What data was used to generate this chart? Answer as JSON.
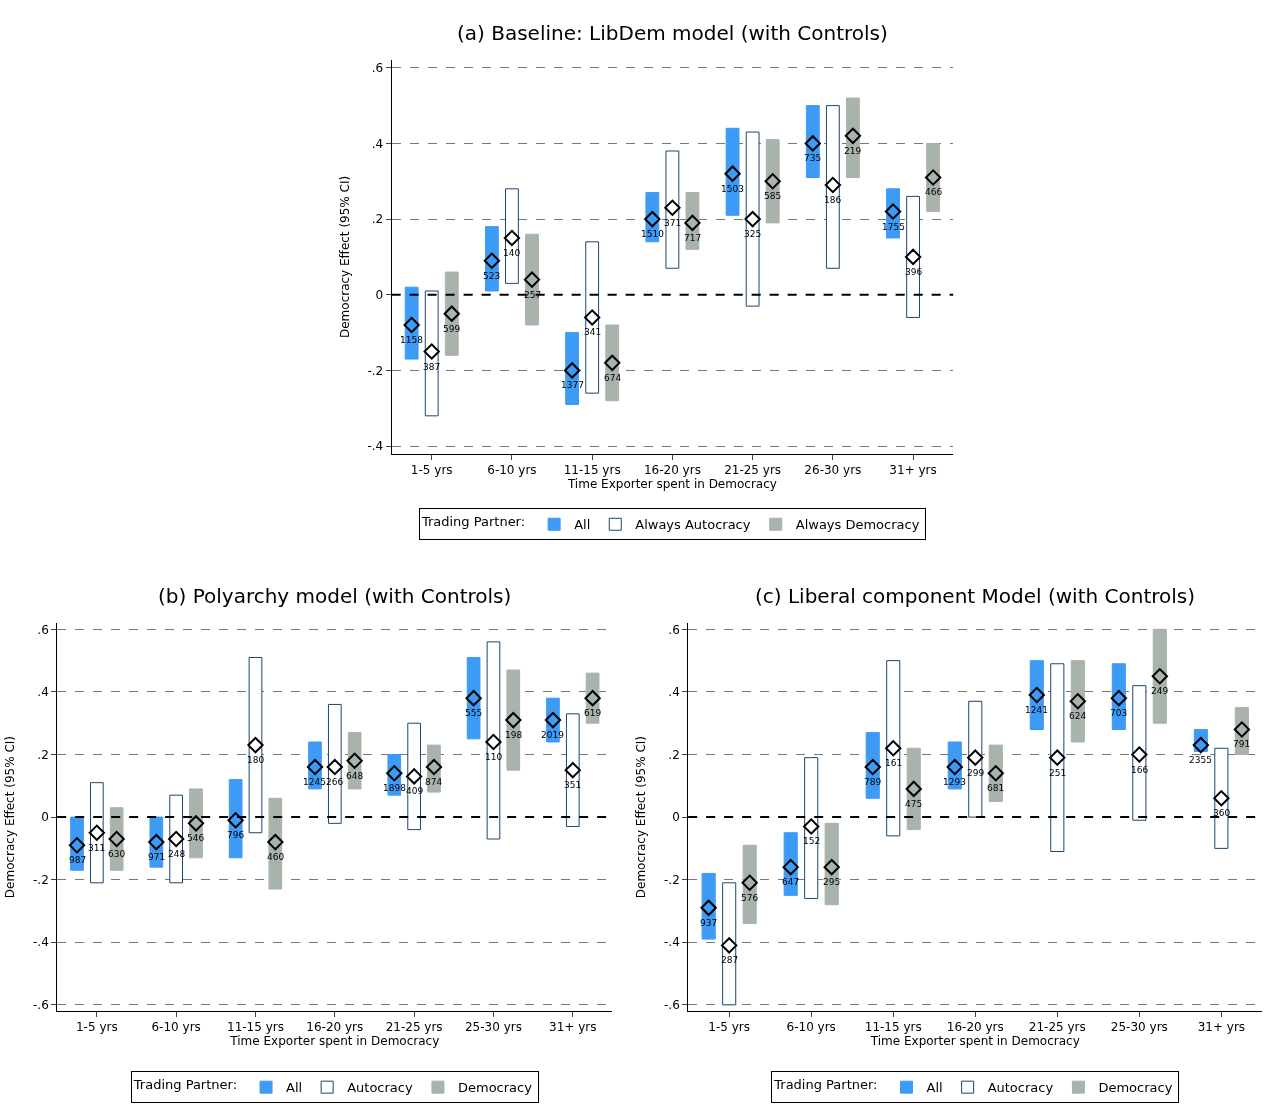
{
  "chart_data": [
    {
      "type": "bar",
      "title": "(a) Baseline: LibDem model (with Controls)",
      "xlabel": "Time Exporter spent in Democracy",
      "ylabel": "Democracy Effect (95% CI)",
      "legend_title": "Trading Partner:",
      "legend": "bottom",
      "grid": "y",
      "categories": [
        "1-5 yrs",
        "6-10 yrs",
        "11-15 yrs",
        "16-20 yrs",
        "21-25 yrs",
        "26-30 yrs",
        "31+ yrs"
      ],
      "ylim": [
        -0.42,
        0.62
      ],
      "yticks": [
        {
          "value": -0.4,
          "label": "-.4"
        },
        {
          "value": -0.2,
          "label": "-.2"
        },
        0,
        {
          "value": 0.2,
          "label": ".2"
        },
        {
          "value": 0.4,
          "label": ".4"
        },
        {
          "value": 0.6,
          "label": ".6"
        }
      ],
      "ref_lines": [
        {
          "axis": "y",
          "value": 0,
          "color": "#000000",
          "line_style": "dashed"
        }
      ],
      "series": [
        {
          "name": "All",
          "color": "#3d9bf5",
          "base": [
            -0.17,
            0.01,
            -0.29,
            0.14,
            0.21,
            0.31,
            0.15
          ],
          "values": [
            0.19,
            0.17,
            0.19,
            0.13,
            0.23,
            0.19,
            0.13
          ]
        },
        {
          "name": "Always Autocracy",
          "color": "#ffffff",
          "base": [
            -0.32,
            0.03,
            -0.26,
            0.07,
            -0.03,
            0.07,
            -0.06
          ],
          "values": [
            0.33,
            0.25,
            0.4,
            0.31,
            0.46,
            0.43,
            0.32
          ]
        },
        {
          "name": "Always Democracy",
          "color": "#a7b3ab",
          "base": [
            -0.16,
            -0.08,
            -0.28,
            0.12,
            0.19,
            0.31,
            0.22
          ],
          "values": [
            0.22,
            0.24,
            0.2,
            0.15,
            0.22,
            0.21,
            0.18
          ]
        },
        {
          "type": "scatter",
          "marker": "diamond",
          "color": "#3d9bf5",
          "values": [
            -0.08,
            0.09,
            -0.2,
            0.2,
            0.32,
            0.4,
            0.22
          ]
        },
        {
          "type": "scatter",
          "marker": "diamond",
          "color": "#ffffff",
          "values": [
            -0.15,
            0.15,
            -0.06,
            0.23,
            0.2,
            0.29,
            0.1
          ]
        },
        {
          "type": "scatter",
          "marker": "diamond",
          "color": "#a7b3ab",
          "values": [
            -0.05,
            0.04,
            -0.18,
            0.19,
            0.3,
            0.42,
            0.31
          ]
        }
      ],
      "annotations": [
        "1158",
        "523",
        "1377",
        "1510",
        "1503",
        "735",
        "1755",
        "387",
        "140",
        "341",
        "371",
        "325",
        "186",
        "396",
        "599",
        "257",
        "674",
        "717",
        "585",
        "219",
        "466"
      ]
    },
    {
      "type": "bar",
      "title": "(b) Polyarchy model (with Controls)",
      "xlabel": "Time Exporter spent in Democracy",
      "ylabel": "Democracy Effect (95% CI)",
      "legend_title": "Trading Partner:",
      "legend": "bottom",
      "grid": "y",
      "categories": [
        "1-5 yrs",
        "6-10 yrs",
        "11-15 yrs",
        "16-20 yrs",
        "21-25 yrs",
        "25-30 yrs",
        "31+ yrs"
      ],
      "ylim": [
        -0.62,
        0.62
      ],
      "yticks": [
        {
          "value": -0.6,
          "label": "-.6"
        },
        {
          "value": -0.4,
          "label": "-.4"
        },
        {
          "value": -0.2,
          "label": "-.2"
        },
        0,
        {
          "value": 0.2,
          "label": ".2"
        },
        {
          "value": 0.4,
          "label": ".4"
        },
        {
          "value": 0.6,
          "label": ".6"
        }
      ],
      "ref_lines": [
        {
          "axis": "y",
          "value": 0,
          "color": "#000000",
          "line_style": "dashed"
        }
      ],
      "series": [
        {
          "name": "All",
          "color": "#3d9bf5",
          "base": [
            -0.17,
            -0.16,
            -0.13,
            0.09,
            0.07,
            0.25,
            0.24
          ],
          "values": [
            0.17,
            0.16,
            0.25,
            0.15,
            0.13,
            0.26,
            0.14
          ]
        },
        {
          "name": "Autocracy",
          "color": "#ffffff",
          "base": [
            -0.21,
            -0.21,
            -0.05,
            -0.02,
            -0.04,
            -0.07,
            -0.03
          ],
          "values": [
            0.32,
            0.28,
            0.56,
            0.38,
            0.34,
            0.63,
            0.36
          ]
        },
        {
          "name": "Democracy",
          "color": "#a7b3ab",
          "base": [
            -0.17,
            -0.13,
            -0.23,
            0.09,
            0.08,
            0.15,
            0.3
          ],
          "values": [
            0.2,
            0.22,
            0.29,
            0.18,
            0.15,
            0.32,
            0.16
          ]
        },
        {
          "type": "scatter",
          "marker": "diamond",
          "color": "#3d9bf5",
          "values": [
            -0.09,
            -0.08,
            -0.01,
            0.16,
            0.14,
            0.38,
            0.31
          ]
        },
        {
          "type": "scatter",
          "marker": "diamond",
          "color": "#ffffff",
          "values": [
            -0.05,
            -0.07,
            0.23,
            0.16,
            0.13,
            0.24,
            0.15
          ]
        },
        {
          "type": "scatter",
          "marker": "diamond",
          "color": "#a7b3ab",
          "values": [
            -0.07,
            -0.02,
            -0.08,
            0.18,
            0.16,
            0.31,
            0.38
          ]
        }
      ],
      "annotations": [
        "987",
        "971",
        "796",
        "1245",
        "1898",
        "555",
        "2019",
        "311",
        "248",
        "180",
        "266",
        "409",
        "110",
        "351",
        "630",
        "546",
        "460",
        "648",
        "874",
        "198",
        "619"
      ]
    },
    {
      "type": "bar",
      "title": "(c) Liberal component Model (with Controls)",
      "xlabel": "Time Exporter spent in Democracy",
      "ylabel": "Democracy Effect (95% CI)",
      "legend_title": "Trading Partner:",
      "legend": "bottom",
      "grid": "y",
      "categories": [
        "1-5 yrs",
        "6-10 yrs",
        "11-15 yrs",
        "16-20 yrs",
        "21-25 yrs",
        "25-30 yrs",
        "31+ yrs"
      ],
      "ylim": [
        -0.62,
        0.62
      ],
      "yticks": [
        {
          "value": -0.6,
          "label": "-.6"
        },
        {
          "value": -0.4,
          "label": "-.4"
        },
        {
          "value": -0.2,
          "label": "-.2"
        },
        0,
        {
          "value": 0.2,
          "label": ".2"
        },
        {
          "value": 0.4,
          "label": ".4"
        },
        {
          "value": 0.6,
          "label": ".6"
        }
      ],
      "ref_lines": [
        {
          "axis": "y",
          "value": 0,
          "color": "#000000",
          "line_style": "dashed"
        }
      ],
      "series": [
        {
          "name": "All",
          "color": "#3d9bf5",
          "base": [
            -0.39,
            -0.25,
            0.06,
            0.09,
            0.28,
            0.28,
            0.21
          ],
          "values": [
            0.21,
            0.2,
            0.21,
            0.15,
            0.22,
            0.21,
            0.07
          ]
        },
        {
          "name": "Autocracy",
          "color": "#ffffff",
          "base": [
            -0.6,
            -0.26,
            -0.06,
            0,
            -0.11,
            -0.01,
            -0.1
          ],
          "values": [
            0.39,
            0.45,
            0.56,
            0.37,
            0.6,
            0.43,
            0.32
          ]
        },
        {
          "name": "Democracy",
          "color": "#a7b3ab",
          "base": [
            -0.34,
            -0.28,
            -0.04,
            0.05,
            0.24,
            0.3,
            0.2
          ],
          "values": [
            0.25,
            0.26,
            0.26,
            0.18,
            0.26,
            0.3,
            0.15
          ]
        },
        {
          "type": "scatter",
          "marker": "diamond",
          "color": "#3d9bf5",
          "values": [
            -0.29,
            -0.16,
            0.16,
            0.16,
            0.39,
            0.38,
            0.23
          ]
        },
        {
          "type": "scatter",
          "marker": "diamond",
          "color": "#ffffff",
          "values": [
            -0.41,
            -0.03,
            0.22,
            0.19,
            0.19,
            0.2,
            0.06
          ]
        },
        {
          "type": "scatter",
          "marker": "diamond",
          "color": "#a7b3ab",
          "values": [
            -0.21,
            -0.16,
            0.09,
            0.14,
            0.37,
            0.45,
            0.28
          ]
        }
      ],
      "annotations": [
        "937",
        "647",
        "789",
        "1293",
        "1241",
        "703",
        "2355",
        "287",
        "152",
        "161",
        "299",
        "251",
        "166",
        "360",
        "576",
        "295",
        "475",
        "681",
        "624",
        "249",
        "791"
      ]
    }
  ]
}
